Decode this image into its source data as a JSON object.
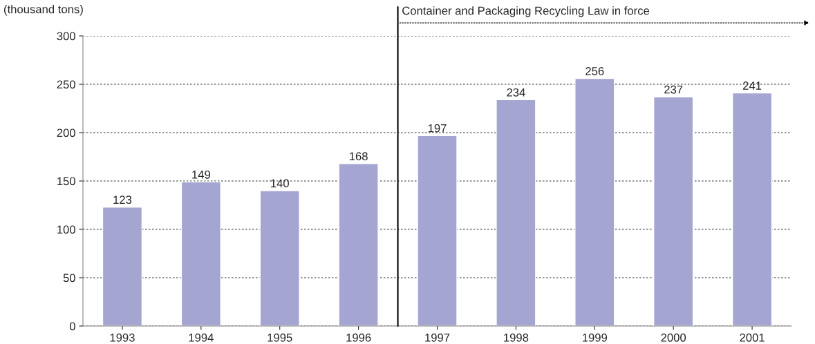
{
  "chart_data": {
    "type": "bar",
    "ylabel": "(thousand tons)",
    "x": [
      1993,
      1994,
      1995,
      1996,
      1997,
      1998,
      1999,
      2000,
      2001
    ],
    "values": [
      123,
      149,
      140,
      168,
      197,
      234,
      256,
      237,
      241
    ],
    "color": "#a5a5d2",
    "xlim": [
      1992.5,
      2001.5
    ],
    "xticks": [
      1993,
      1994,
      1995,
      1996,
      1997,
      1998,
      1999,
      2000,
      2001
    ],
    "ylim": [
      0,
      300
    ],
    "yticks": [
      0,
      50,
      100,
      150,
      200,
      250,
      300
    ],
    "grid": "y",
    "data_labels": true,
    "ref_lines": [
      {
        "axis": "x",
        "value": 1996.5,
        "label": "Container and Packaging Recycling Law in force",
        "color": "#000000",
        "line_style": "solid"
      }
    ]
  }
}
